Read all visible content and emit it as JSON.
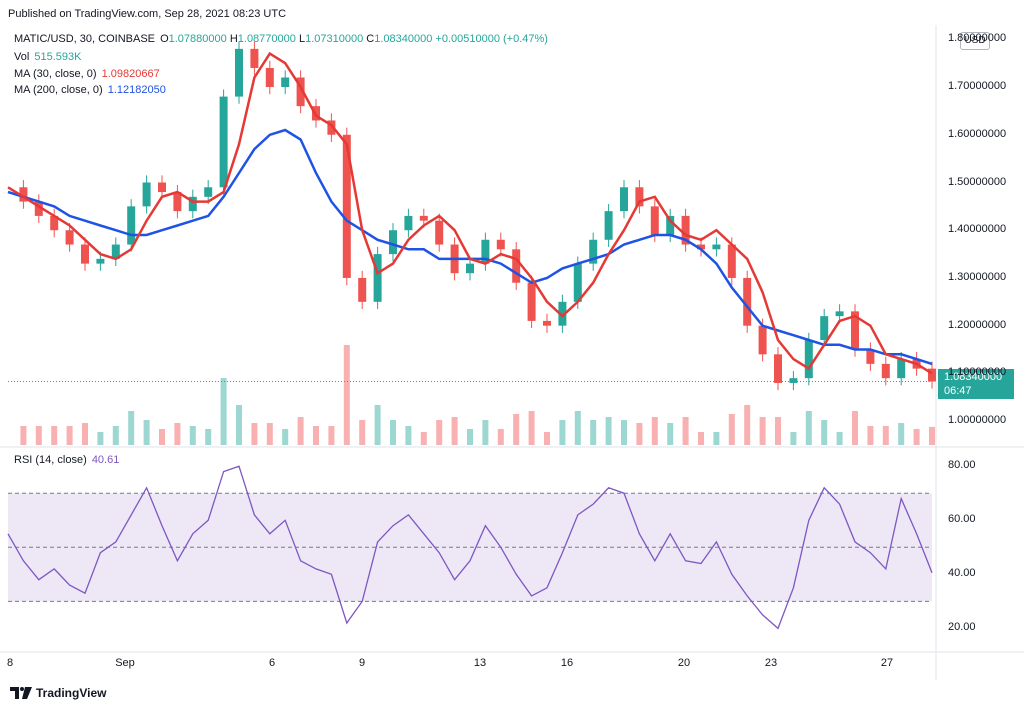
{
  "header": {
    "published": "Published on TradingView.com, Sep 28, 2021 08:23 UTC"
  },
  "legend": {
    "symbol": "MATIC/USD, 30, COINBASE",
    "o_label": "O",
    "o": "1.07880000",
    "h_label": "H",
    "h": "1.08770000",
    "l_label": "L",
    "l": "1.07310000",
    "c_label": "C",
    "c": "1.08340000",
    "change": "+0.00510000 (+0.47%)",
    "vol_label": "Vol",
    "vol": "515.593K",
    "ma30_label": "MA (30, close, 0)",
    "ma30": "1.09820667",
    "ma200_label": "MA (200, close, 0)",
    "ma200": "1.12182050",
    "rsi_label": "RSI (14, close)",
    "rsi": "40.61"
  },
  "currency": "USD",
  "price_tag": {
    "price": "1.08340000",
    "countdown": "06:47"
  },
  "colors": {
    "up": "#26a69a",
    "down": "#ef5350",
    "ma30": "#e53935",
    "ma200": "#1e53e5",
    "rsi": "#7e57c2",
    "rsi_band": "#ede7f6"
  },
  "footer": {
    "brand": "TradingView"
  },
  "chart_data": [
    {
      "type": "line",
      "title": "MATIC/USD, 30, COINBASE",
      "y_ticks": [
        "1.80000000",
        "1.70000000",
        "1.60000000",
        "1.50000000",
        "1.40000000",
        "1.30000000",
        "1.20000000",
        "1.10000000",
        "1.00000000"
      ],
      "ylim": [
        0.95,
        1.83
      ],
      "x_ticks": [
        "8",
        "Sep",
        "6",
        "9",
        "13",
        "16",
        "20",
        "23",
        "27"
      ],
      "series": [
        {
          "name": "MA (30, close, 0)",
          "x": [
            0,
            1,
            2,
            3,
            4,
            5,
            6,
            7,
            8,
            9,
            10,
            11,
            12,
            13,
            14,
            15,
            16,
            17,
            18,
            19,
            20,
            21,
            22,
            23,
            24,
            25,
            26,
            27,
            28,
            29,
            30,
            31,
            32,
            33,
            34,
            35,
            36,
            37,
            38,
            39,
            40,
            41,
            42,
            43,
            44,
            45,
            46,
            47,
            48,
            49,
            50,
            51,
            52,
            53,
            54,
            55,
            56,
            57,
            58,
            59,
            60
          ],
          "values": [
            1.49,
            1.47,
            1.45,
            1.43,
            1.41,
            1.38,
            1.35,
            1.34,
            1.36,
            1.42,
            1.47,
            1.48,
            1.46,
            1.46,
            1.48,
            1.58,
            1.72,
            1.77,
            1.75,
            1.7,
            1.64,
            1.62,
            1.58,
            1.4,
            1.31,
            1.33,
            1.38,
            1.41,
            1.43,
            1.4,
            1.34,
            1.33,
            1.35,
            1.34,
            1.3,
            1.25,
            1.22,
            1.25,
            1.29,
            1.35,
            1.4,
            1.46,
            1.47,
            1.42,
            1.39,
            1.38,
            1.4,
            1.37,
            1.34,
            1.27,
            1.17,
            1.13,
            1.11,
            1.16,
            1.21,
            1.22,
            1.2,
            1.14,
            1.13,
            1.12,
            1.1
          ]
        },
        {
          "name": "MA (200, close, 0)",
          "x": [
            0,
            1,
            2,
            3,
            4,
            5,
            6,
            7,
            8,
            9,
            10,
            11,
            12,
            13,
            14,
            15,
            16,
            17,
            18,
            19,
            20,
            21,
            22,
            23,
            24,
            25,
            26,
            27,
            28,
            29,
            30,
            31,
            32,
            33,
            34,
            35,
            36,
            37,
            38,
            39,
            40,
            41,
            42,
            43,
            44,
            45,
            46,
            47,
            48,
            49,
            50,
            51,
            52,
            53,
            54,
            55,
            56,
            57,
            58,
            59,
            60
          ],
          "values": [
            1.48,
            1.47,
            1.46,
            1.45,
            1.43,
            1.42,
            1.41,
            1.4,
            1.39,
            1.39,
            1.4,
            1.41,
            1.42,
            1.43,
            1.47,
            1.52,
            1.57,
            1.6,
            1.61,
            1.59,
            1.52,
            1.46,
            1.42,
            1.4,
            1.38,
            1.37,
            1.36,
            1.36,
            1.34,
            1.34,
            1.34,
            1.34,
            1.33,
            1.31,
            1.29,
            1.3,
            1.32,
            1.33,
            1.34,
            1.35,
            1.37,
            1.38,
            1.39,
            1.39,
            1.38,
            1.36,
            1.33,
            1.28,
            1.24,
            1.2,
            1.19,
            1.18,
            1.17,
            1.16,
            1.16,
            1.15,
            1.15,
            1.14,
            1.14,
            1.13,
            1.12
          ]
        },
        {
          "name": "Close",
          "x": [
            0,
            1,
            2,
            3,
            4,
            5,
            6,
            7,
            8,
            9,
            10,
            11,
            12,
            13,
            14,
            15,
            16,
            17,
            18,
            19,
            20,
            21,
            22,
            23,
            24,
            25,
            26,
            27,
            28,
            29,
            30,
            31,
            32,
            33,
            34,
            35,
            36,
            37,
            38,
            39,
            40,
            41,
            42,
            43,
            44,
            45,
            46,
            47,
            48,
            49,
            50,
            51,
            52,
            53,
            54,
            55,
            56,
            57,
            58,
            59,
            60
          ],
          "values": [
            1.49,
            1.46,
            1.43,
            1.4,
            1.37,
            1.33,
            1.34,
            1.37,
            1.45,
            1.5,
            1.48,
            1.44,
            1.47,
            1.49,
            1.68,
            1.78,
            1.74,
            1.7,
            1.72,
            1.66,
            1.63,
            1.6,
            1.3,
            1.25,
            1.35,
            1.4,
            1.43,
            1.42,
            1.37,
            1.31,
            1.33,
            1.38,
            1.36,
            1.29,
            1.21,
            1.2,
            1.25,
            1.33,
            1.38,
            1.44,
            1.49,
            1.45,
            1.39,
            1.43,
            1.37,
            1.36,
            1.37,
            1.3,
            1.2,
            1.14,
            1.08,
            1.09,
            1.17,
            1.22,
            1.23,
            1.15,
            1.12,
            1.09,
            1.13,
            1.11,
            1.083
          ]
        }
      ]
    },
    {
      "type": "line",
      "title": "RSI (14, close)",
      "y_ticks": [
        "80.00",
        "60.00",
        "40.00",
        "20.00"
      ],
      "ylim": [
        12,
        86
      ],
      "bands": [
        30,
        50,
        70
      ],
      "series": [
        {
          "name": "RSI (14, close)",
          "x": [
            0,
            1,
            2,
            3,
            4,
            5,
            6,
            7,
            8,
            9,
            10,
            11,
            12,
            13,
            14,
            15,
            16,
            17,
            18,
            19,
            20,
            21,
            22,
            23,
            24,
            25,
            26,
            27,
            28,
            29,
            30,
            31,
            32,
            33,
            34,
            35,
            36,
            37,
            38,
            39,
            40,
            41,
            42,
            43,
            44,
            45,
            46,
            47,
            48,
            49,
            50,
            51,
            52,
            53,
            54,
            55,
            56,
            57,
            58,
            59,
            60
          ],
          "values": [
            55,
            45,
            38,
            42,
            36,
            33,
            48,
            52,
            62,
            72,
            58,
            45,
            55,
            60,
            78,
            80,
            62,
            55,
            60,
            45,
            42,
            40,
            22,
            30,
            52,
            58,
            62,
            55,
            48,
            38,
            45,
            58,
            50,
            40,
            32,
            35,
            48,
            62,
            66,
            72,
            70,
            55,
            45,
            55,
            45,
            44,
            52,
            40,
            32,
            25,
            20,
            35,
            60,
            72,
            66,
            52,
            48,
            42,
            68,
            55,
            40.61
          ]
        }
      ]
    }
  ]
}
